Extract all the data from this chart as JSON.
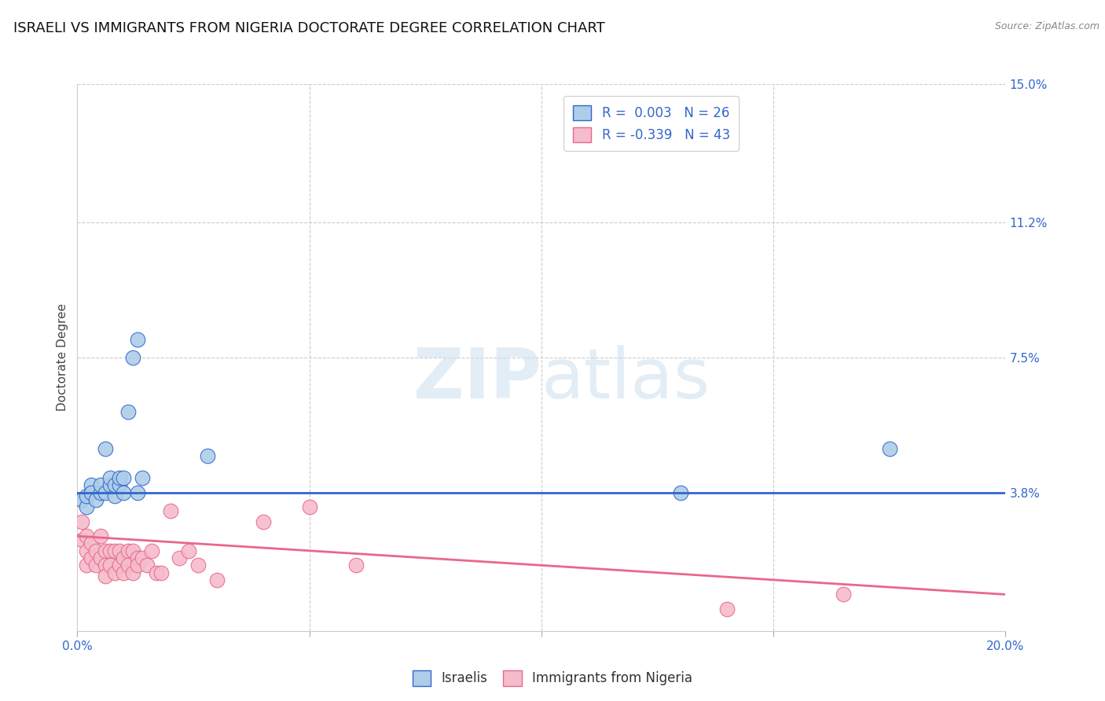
{
  "title": "ISRAELI VS IMMIGRANTS FROM NIGERIA DOCTORATE DEGREE CORRELATION CHART",
  "source": "Source: ZipAtlas.com",
  "ylabel": "Doctorate Degree",
  "xlim": [
    0.0,
    0.2
  ],
  "ylim": [
    0.0,
    0.15
  ],
  "xticks": [
    0.0,
    0.05,
    0.1,
    0.15,
    0.2
  ],
  "xtick_labels": [
    "0.0%",
    "",
    "",
    "",
    "20.0%"
  ],
  "ytick_labels_right": [
    "15.0%",
    "11.2%",
    "7.5%",
    "3.8%",
    ""
  ],
  "ytick_positions_right": [
    0.15,
    0.112,
    0.075,
    0.038,
    0.0
  ],
  "watermark_zip": "ZIP",
  "watermark_atlas": "atlas",
  "legend_r1": "R =  0.003   N = 26",
  "legend_r2": "R = -0.339   N = 43",
  "blue_color": "#aecde8",
  "pink_color": "#f5bccb",
  "blue_line_color": "#3366cc",
  "pink_line_color": "#e8688a",
  "israeli_scatter_x": [
    0.001,
    0.002,
    0.002,
    0.003,
    0.003,
    0.004,
    0.005,
    0.005,
    0.006,
    0.006,
    0.007,
    0.007,
    0.008,
    0.008,
    0.009,
    0.009,
    0.01,
    0.01,
    0.011,
    0.012,
    0.013,
    0.013,
    0.014,
    0.028,
    0.13,
    0.175
  ],
  "israeli_scatter_y": [
    0.036,
    0.034,
    0.037,
    0.04,
    0.038,
    0.036,
    0.038,
    0.04,
    0.05,
    0.038,
    0.04,
    0.042,
    0.037,
    0.04,
    0.04,
    0.042,
    0.038,
    0.042,
    0.06,
    0.075,
    0.08,
    0.038,
    0.042,
    0.048,
    0.038,
    0.05
  ],
  "nigeria_scatter_x": [
    0.001,
    0.001,
    0.002,
    0.002,
    0.002,
    0.003,
    0.003,
    0.004,
    0.004,
    0.005,
    0.005,
    0.006,
    0.006,
    0.006,
    0.007,
    0.007,
    0.008,
    0.008,
    0.009,
    0.009,
    0.01,
    0.01,
    0.011,
    0.011,
    0.012,
    0.012,
    0.013,
    0.013,
    0.014,
    0.015,
    0.016,
    0.017,
    0.018,
    0.02,
    0.022,
    0.024,
    0.026,
    0.03,
    0.04,
    0.05,
    0.06,
    0.14,
    0.165
  ],
  "nigeria_scatter_y": [
    0.03,
    0.025,
    0.026,
    0.022,
    0.018,
    0.024,
    0.02,
    0.022,
    0.018,
    0.026,
    0.02,
    0.022,
    0.018,
    0.015,
    0.022,
    0.018,
    0.022,
    0.016,
    0.022,
    0.018,
    0.02,
    0.016,
    0.022,
    0.018,
    0.022,
    0.016,
    0.02,
    0.018,
    0.02,
    0.018,
    0.022,
    0.016,
    0.016,
    0.033,
    0.02,
    0.022,
    0.018,
    0.014,
    0.03,
    0.034,
    0.018,
    0.006,
    0.01
  ],
  "blue_hline_y": 0.038,
  "pink_trend_x": [
    0.0,
    0.2
  ],
  "pink_trend_y": [
    0.026,
    0.01
  ],
  "bg_color": "#ffffff",
  "grid_color": "#cccccc",
  "title_fontsize": 13,
  "label_fontsize": 11,
  "tick_fontsize": 11
}
